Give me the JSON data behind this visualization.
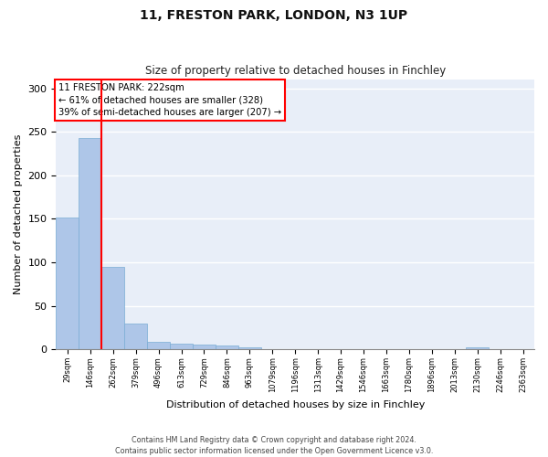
{
  "title_line1": "11, FRESTON PARK, LONDON, N3 1UP",
  "title_line2": "Size of property relative to detached houses in Finchley",
  "xlabel": "Distribution of detached houses by size in Finchley",
  "ylabel": "Number of detached properties",
  "categories": [
    "29sqm",
    "146sqm",
    "262sqm",
    "379sqm",
    "496sqm",
    "613sqm",
    "729sqm",
    "846sqm",
    "963sqm",
    "1079sqm",
    "1196sqm",
    "1313sqm",
    "1429sqm",
    "1546sqm",
    "1663sqm",
    "1780sqm",
    "1896sqm",
    "2013sqm",
    "2130sqm",
    "2246sqm",
    "2363sqm"
  ],
  "values": [
    152,
    243,
    95,
    30,
    9,
    7,
    6,
    4,
    2,
    0,
    0,
    0,
    0,
    0,
    0,
    0,
    0,
    0,
    2,
    0,
    0
  ],
  "bar_color": "#aec6e8",
  "bar_edge_color": "#7aadd4",
  "marker_line_color": "red",
  "annotation_box_color": "white",
  "annotation_box_edge": "red",
  "ylim": [
    0,
    310
  ],
  "yticks": [
    0,
    50,
    100,
    150,
    200,
    250,
    300
  ],
  "footnote_line1": "Contains HM Land Registry data © Crown copyright and database right 2024.",
  "footnote_line2": "Contains public sector information licensed under the Open Government Licence v3.0.",
  "bg_color": "#e8eef8"
}
